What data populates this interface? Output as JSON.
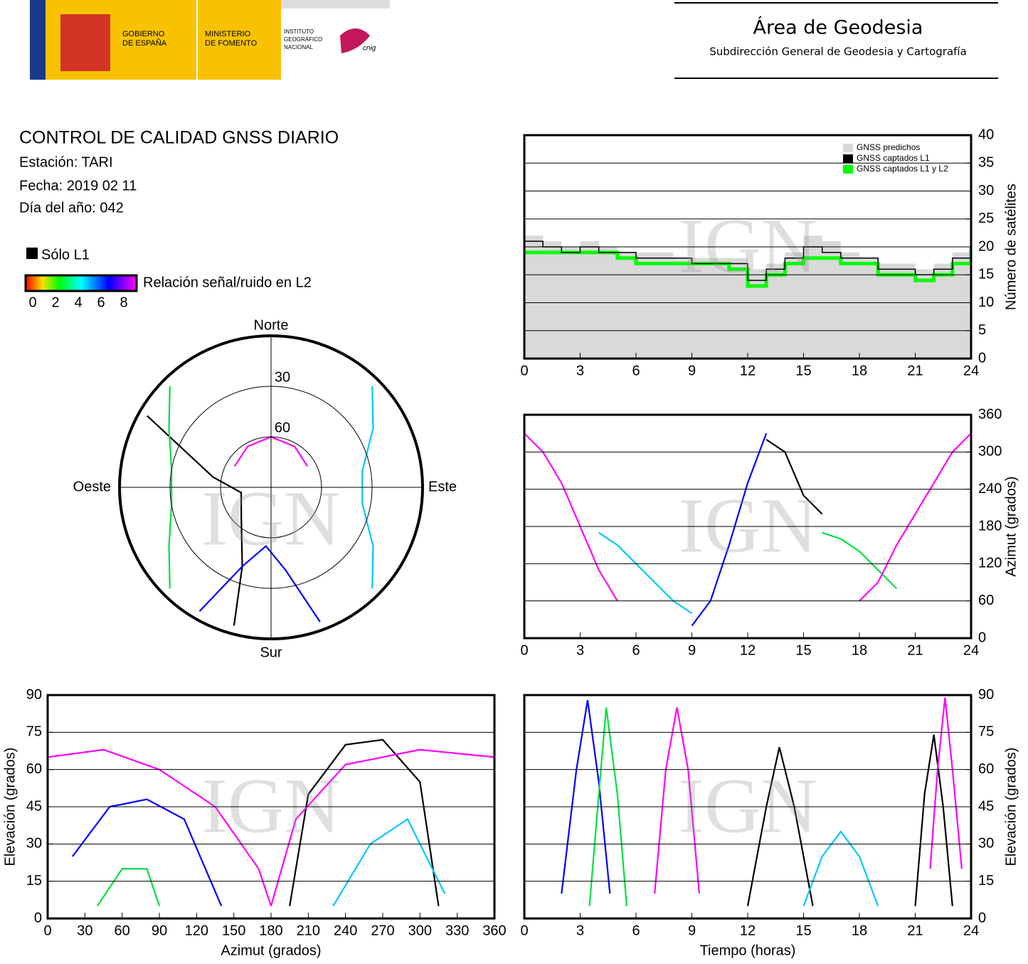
{
  "header": {
    "gobierno": [
      "GOBIERNO",
      "DE ESPAÑA"
    ],
    "ministerio": [
      "MINISTERIO",
      "DE FOMENTO"
    ],
    "instituto": [
      "INSTITUTO",
      "GEOGRÁFICO",
      "NACIONAL"
    ],
    "cnig": "cnig",
    "area": "Área de Geodesia",
    "subdireccion": "Subdirección General de Geodesia y Cartografía"
  },
  "info": {
    "title": "CONTROL DE CALIDAD GNSS DIARIO",
    "station": "Estación: TARI",
    "date": "Fecha: 2019 02 11",
    "doy": "Día del año: 042"
  },
  "legend": {
    "solo_l1": "Sólo L1",
    "snr_label": "Relación señal/ruido en L2",
    "snr_ticks": [
      0,
      2,
      4,
      6,
      8
    ]
  },
  "chart_data": [
    {
      "type": "step",
      "watermark": "IGN",
      "xlim": [
        0,
        24
      ],
      "xticks": [
        0,
        3,
        6,
        9,
        12,
        15,
        18,
        21,
        24
      ],
      "ylim": [
        0,
        40
      ],
      "yticks": [
        0,
        5,
        10,
        15,
        20,
        25,
        30,
        35,
        40
      ],
      "ylabel": "Número de satélites",
      "y_axis_side": "right",
      "grid": true,
      "legend": "upper right",
      "x": [
        0,
        1,
        2,
        3,
        4,
        5,
        6,
        7,
        8,
        9,
        10,
        11,
        12,
        13,
        14,
        15,
        16,
        17,
        18,
        19,
        20,
        21,
        22,
        23,
        24
      ],
      "series": [
        {
          "name": "GNSS predichos",
          "color": "#d9d9d9",
          "values": [
            22,
            21,
            20,
            21,
            20,
            19,
            19,
            19,
            18,
            18,
            18,
            18,
            16,
            17,
            19,
            22,
            21,
            19,
            18,
            17,
            17,
            16,
            17,
            19,
            22
          ]
        },
        {
          "name": "GNSS captados L1",
          "color": "#000000",
          "values": [
            21,
            20,
            19,
            20,
            19,
            19,
            18,
            18,
            18,
            17,
            17,
            17,
            14,
            16,
            18,
            20,
            19,
            18,
            18,
            16,
            16,
            15,
            16,
            18,
            21
          ]
        },
        {
          "name": "GNSS captados L1 y L2",
          "color": "#00ff00",
          "values": [
            19,
            19,
            19,
            19,
            19,
            18,
            17,
            17,
            17,
            17,
            17,
            16,
            13,
            15,
            17,
            18,
            18,
            17,
            17,
            15,
            15,
            14,
            15,
            17,
            20
          ]
        }
      ]
    },
    {
      "type": "track",
      "watermark": "IGN",
      "xlim": [
        0,
        24
      ],
      "xticks": [
        0,
        3,
        6,
        9,
        12,
        15,
        18,
        21,
        24
      ],
      "ylim": [
        0,
        360
      ],
      "yticks": [
        0,
        60,
        120,
        180,
        240,
        300,
        360
      ],
      "ylabel": "Azimut (grados)",
      "y_axis_side": "right",
      "grid": true,
      "series": [
        {
          "color": "#ff00ff",
          "x": [
            0,
            1,
            2,
            3,
            4,
            5
          ],
          "y": [
            330,
            300,
            250,
            180,
            110,
            60
          ]
        },
        {
          "color": "#00c8ff",
          "x": [
            4,
            5,
            6,
            7,
            8,
            9
          ],
          "y": [
            170,
            150,
            120,
            90,
            60,
            40
          ]
        },
        {
          "color": "#000000",
          "x": [
            13,
            14,
            15,
            16
          ],
          "y": [
            320,
            300,
            230,
            200
          ]
        },
        {
          "color": "#0000ff",
          "x": [
            9,
            10,
            11,
            12,
            13
          ],
          "y": [
            20,
            60,
            150,
            250,
            330
          ]
        },
        {
          "color": "#00e040",
          "x": [
            16,
            17,
            18,
            19,
            20
          ],
          "y": [
            170,
            160,
            140,
            110,
            80
          ]
        },
        {
          "color": "#ff00ff",
          "x": [
            18,
            19,
            20,
            21,
            22,
            23,
            24
          ],
          "y": [
            60,
            90,
            150,
            200,
            250,
            300,
            330
          ]
        }
      ]
    },
    {
      "type": "polar",
      "watermark": "IGN",
      "north": "Norte",
      "south": "Sur",
      "east": "Este",
      "west": "Oeste",
      "rings": [
        30,
        60
      ],
      "series": [
        {
          "color": "#000000",
          "azimuth": [
            195,
            200,
            225,
            260,
            280,
            300
          ],
          "elevation": [
            5,
            40,
            65,
            72,
            55,
            5
          ]
        },
        {
          "color": "#ff00ff",
          "azimuth": [
            300,
            330,
            0,
            30,
            60
          ],
          "elevation": [
            65,
            62,
            60,
            62,
            65
          ]
        },
        {
          "color": "#0000ff",
          "azimuth": [
            160,
            170,
            185,
            200,
            210
          ],
          "elevation": [
            5,
            40,
            55,
            40,
            5
          ]
        },
        {
          "color": "#00c8ff",
          "azimuth": [
            45,
            60,
            80,
            100,
            120,
            135
          ],
          "elevation": [
            5,
            20,
            35,
            35,
            20,
            5
          ]
        },
        {
          "color": "#00e040",
          "azimuth": [
            225,
            240,
            260,
            280,
            300,
            315
          ],
          "elevation": [
            5,
            20,
            30,
            30,
            20,
            5
          ]
        }
      ]
    },
    {
      "type": "track",
      "watermark": "IGN",
      "xlim": [
        0,
        360
      ],
      "xticks": [
        0,
        30,
        60,
        90,
        120,
        150,
        180,
        210,
        240,
        270,
        300,
        330,
        360
      ],
      "ylim": [
        0,
        90
      ],
      "yticks": [
        0,
        15,
        30,
        45,
        60,
        75,
        90
      ],
      "xlabel": "Azimut (grados)",
      "ylabel": "Elevación (grados)",
      "y_axis_side": "left",
      "grid": true,
      "series": [
        {
          "color": "#000000",
          "x": [
            195,
            210,
            240,
            270,
            300,
            315
          ],
          "y": [
            5,
            50,
            70,
            72,
            55,
            5
          ]
        },
        {
          "color": "#ff00ff",
          "x": [
            0,
            45,
            90,
            135,
            170,
            180
          ],
          "y": [
            65,
            68,
            60,
            45,
            20,
            5
          ]
        },
        {
          "color": "#ff00ff",
          "x": [
            180,
            200,
            240,
            300,
            360
          ],
          "y": [
            5,
            40,
            62,
            68,
            65
          ]
        },
        {
          "color": "#0000ff",
          "x": [
            20,
            50,
            80,
            110,
            140
          ],
          "y": [
            25,
            45,
            48,
            40,
            5
          ]
        },
        {
          "color": "#00c8ff",
          "x": [
            230,
            260,
            290,
            320
          ],
          "y": [
            5,
            30,
            40,
            10
          ]
        },
        {
          "color": "#00e040",
          "x": [
            40,
            60,
            80,
            90
          ],
          "y": [
            5,
            20,
            20,
            5
          ]
        }
      ]
    },
    {
      "type": "track",
      "watermark": "IGN",
      "xlim": [
        0,
        24
      ],
      "xticks": [
        0,
        3,
        6,
        9,
        12,
        15,
        18,
        21,
        24
      ],
      "ylim": [
        0,
        90
      ],
      "yticks": [
        0,
        15,
        30,
        45,
        60,
        75,
        90
      ],
      "xlabel": "Tiempo (horas)",
      "ylabel": "Elevación (grados)",
      "y_axis_side": "right",
      "grid": true,
      "series": [
        {
          "color": "#000000",
          "x": [
            21,
            21.5,
            22,
            22.5,
            23
          ],
          "y": [
            5,
            50,
            74,
            45,
            5
          ]
        },
        {
          "color": "#0000ff",
          "x": [
            2,
            2.8,
            3.4,
            4,
            4.6
          ],
          "y": [
            10,
            60,
            88,
            55,
            10
          ]
        },
        {
          "color": "#ff00ff",
          "x": [
            7,
            7.6,
            8.2,
            8.8,
            9.4
          ],
          "y": [
            10,
            60,
            85,
            60,
            10
          ]
        },
        {
          "color": "#00e040",
          "x": [
            3.5,
            4,
            4.4,
            5,
            5.5
          ],
          "y": [
            5,
            50,
            85,
            50,
            5
          ]
        },
        {
          "color": "#000000",
          "x": [
            12,
            13,
            13.7,
            14.5,
            15.5
          ],
          "y": [
            5,
            45,
            69,
            45,
            5
          ]
        },
        {
          "color": "#00c8ff",
          "x": [
            15,
            16,
            17,
            18,
            19
          ],
          "y": [
            5,
            25,
            35,
            25,
            5
          ]
        },
        {
          "color": "#ff00ff",
          "x": [
            21.8,
            22.2,
            22.6,
            23,
            23.5
          ],
          "y": [
            20,
            60,
            89,
            60,
            20
          ]
        }
      ]
    }
  ]
}
